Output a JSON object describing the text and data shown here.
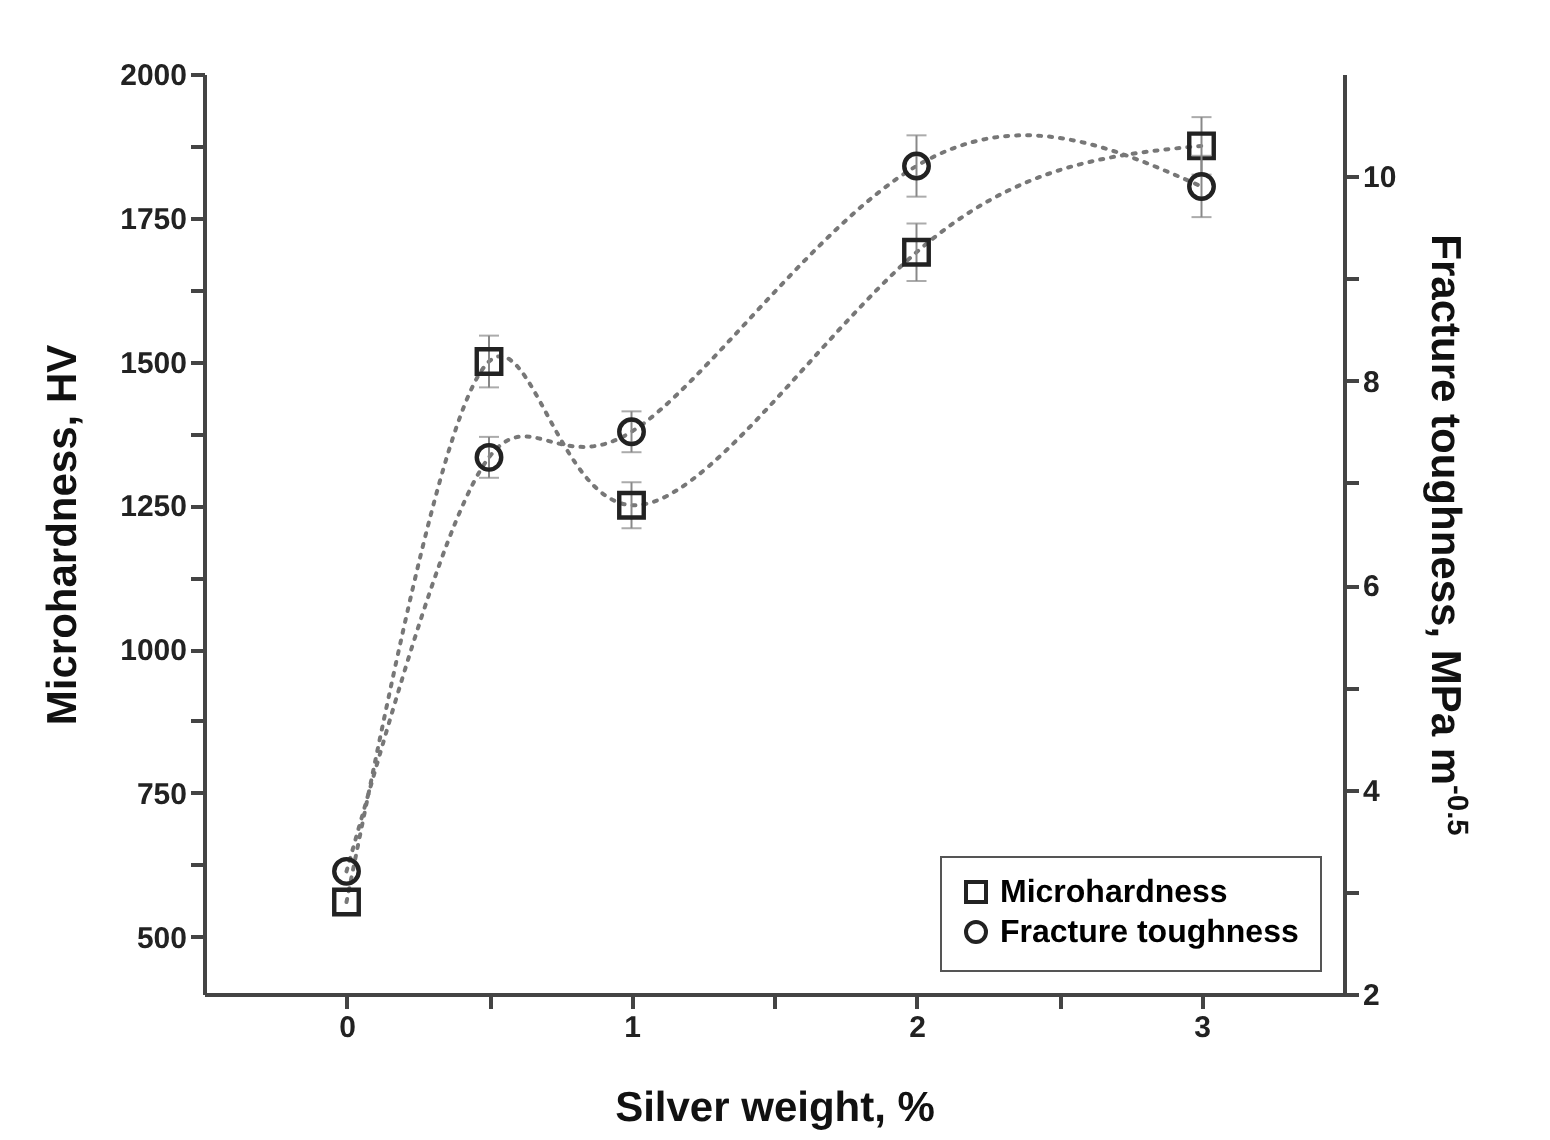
{
  "chart_data": {
    "type": "line",
    "xlabel": "Silver weight, %",
    "ylabel": "Microhardness, HV",
    "y2label": "Fracture toughness, MPa m$^{-0.5}$",
    "xlim": [
      -0.5,
      3.5
    ],
    "xticks": [
      0,
      {
        "value": 0.5,
        "label": null
      },
      1,
      {
        "value": 1.5,
        "label": null
      },
      2,
      {
        "value": 2.5,
        "label": null
      },
      3
    ],
    "ylim": [
      400,
      2000
    ],
    "yticks": [
      500,
      {
        "value": 625,
        "label": null
      },
      750,
      {
        "value": 875,
        "label": null
      },
      1000,
      {
        "value": 1125,
        "label": null
      },
      1250,
      {
        "value": 1375,
        "label": null
      },
      1500,
      {
        "value": 1625,
        "label": null
      },
      1750,
      {
        "value": 1875,
        "label": null
      },
      2000
    ],
    "y2lim": [
      2,
      11
    ],
    "y2ticks": [
      2,
      {
        "value": 3,
        "label": null
      },
      4,
      {
        "value": 5,
        "label": null
      },
      6,
      {
        "value": 7,
        "label": null
      },
      8,
      {
        "value": 9,
        "label": null
      },
      10
    ],
    "x": [
      0,
      0.5,
      1,
      2,
      3
    ],
    "series": [
      {
        "name": "Microhardness",
        "color": "#222222",
        "marker": "square",
        "line_style": "dotted",
        "values": [
          560,
          1500,
          1250,
          1690,
          1875
        ],
        "errors": [
          null,
          45,
          40,
          50,
          50
        ]
      },
      {
        "name": "Fracture toughness",
        "color": "#222222",
        "marker": "circle",
        "line_style": "dotted",
        "axis": "y2",
        "values": [
          3.2,
          7.25,
          7.5,
          10.1,
          9.9
        ],
        "errors": [
          null,
          0.2,
          0.2,
          0.3,
          0.3
        ]
      }
    ],
    "legend": "bottom right",
    "grid": false
  }
}
